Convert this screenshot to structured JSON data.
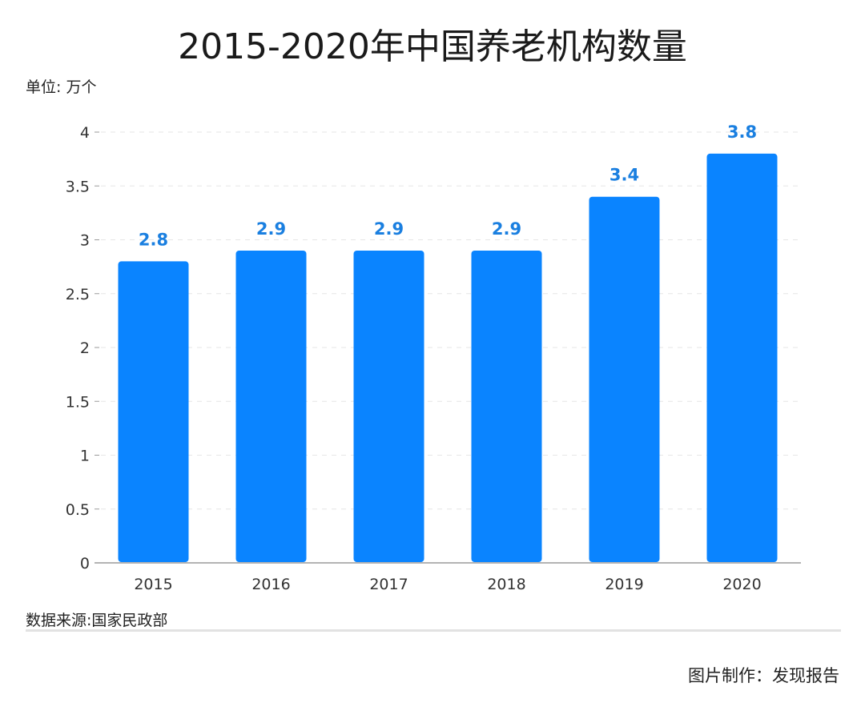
{
  "chart_data": {
    "type": "bar",
    "title": "2015-2020年中国养老机构数量",
    "unit_label": "单位: 万个",
    "categories": [
      "2015",
      "2016",
      "2017",
      "2018",
      "2019",
      "2020"
    ],
    "values": [
      2.8,
      2.9,
      2.9,
      2.9,
      3.4,
      3.8
    ],
    "data_labels": [
      "2.8",
      "2.9",
      "2.9",
      "2.9",
      "3.4",
      "3.8"
    ],
    "ylim": [
      0,
      4
    ],
    "yticks": [
      "0",
      "0.5",
      "1",
      "1.5",
      "2",
      "2.5",
      "3",
      "3.5",
      "4"
    ],
    "grid": true,
    "colors": {
      "bar": "#0A84FF",
      "label": "#1A7FE0",
      "grid": "#e6e6e6",
      "axis": "#9a9a9a"
    }
  },
  "footer": {
    "source": "数据来源:国家民政部",
    "credit": "图片制作：发现报告"
  }
}
